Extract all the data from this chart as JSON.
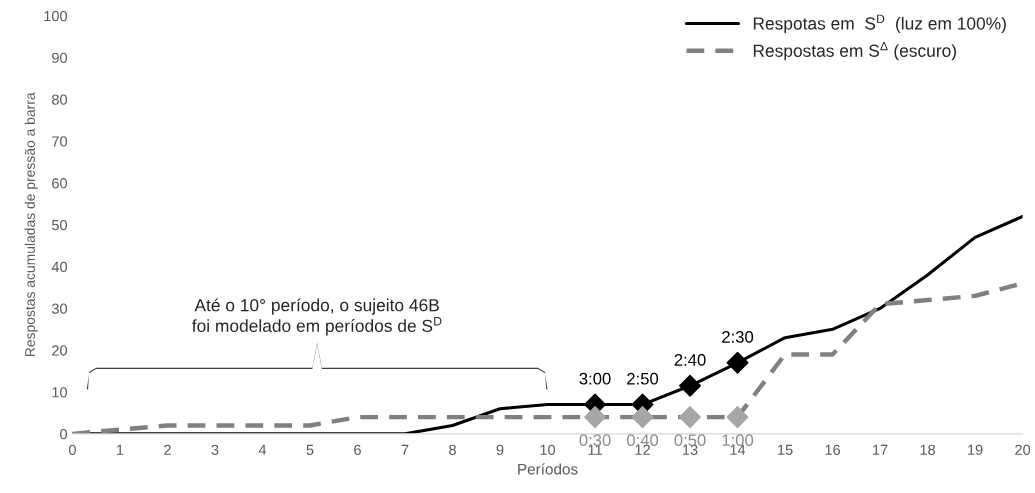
{
  "chart_data": {
    "type": "line",
    "xlabel": "Períodos",
    "ylabel": "Respostas acumuladas de pressão a barra",
    "x": [
      0,
      1,
      2,
      3,
      4,
      5,
      6,
      7,
      8,
      9,
      10,
      11,
      12,
      13,
      14,
      15,
      16,
      17,
      18,
      19,
      20
    ],
    "series": [
      {
        "name": "Respotas em  S$^{D}$  (luz em 100%)",
        "color": "#000000",
        "line_style": "solid",
        "values": [
          0,
          0,
          0,
          0,
          0,
          0,
          0,
          0,
          2,
          6,
          7,
          7,
          7,
          11.5,
          17,
          23,
          25,
          30,
          38,
          47,
          52
        ]
      },
      {
        "name": "Respostas em S$^{Δ}$ (escuro)",
        "color": "#808080",
        "line_style": "dashed",
        "values": [
          0,
          1,
          2,
          2,
          2,
          2,
          4,
          4,
          4,
          4,
          4,
          4,
          4,
          4,
          4,
          19,
          19,
          31,
          32,
          33,
          36
        ]
      },
      {
        "type": "scatter",
        "color": "#000000",
        "marker": "diamond",
        "x": [
          11,
          12,
          13,
          14
        ],
        "values": [
          7,
          7,
          11.5,
          17
        ]
      },
      {
        "type": "scatter",
        "color": "#a6a6a6",
        "marker": "diamond",
        "x": [
          11,
          12,
          13,
          14
        ],
        "values": [
          4,
          4,
          4,
          4
        ]
      }
    ],
    "annotations": [
      "Até o 10° período, o sujeito 46B\nfoi modelado em períodos de S$^{D}$",
      {
        "text": "3:00",
        "x": 11,
        "y": 7
      },
      {
        "text": "2:50",
        "x": 12,
        "y": 7
      },
      {
        "text": "2:40",
        "x": 13,
        "y": 11.5
      },
      {
        "text": "2:30",
        "x": 14,
        "y": 17
      },
      {
        "text": "0:30",
        "x": 11,
        "y": 4
      },
      {
        "text": "0:40",
        "x": 12,
        "y": 4
      },
      {
        "text": "0:50",
        "x": 13,
        "y": 4
      },
      {
        "text": "1:00",
        "x": 14,
        "y": 4
      }
    ],
    "xlim": [
      0,
      20
    ],
    "xticks": [
      0,
      1,
      2,
      3,
      4,
      5,
      6,
      7,
      8,
      9,
      10,
      11,
      12,
      13,
      14,
      15,
      16,
      17,
      18,
      19,
      20
    ],
    "ylim": [
      0,
      100
    ],
    "yticks": [
      0,
      10,
      20,
      30,
      40,
      50,
      60,
      70,
      80,
      90,
      100
    ],
    "grid": false,
    "legend": "top right"
  }
}
